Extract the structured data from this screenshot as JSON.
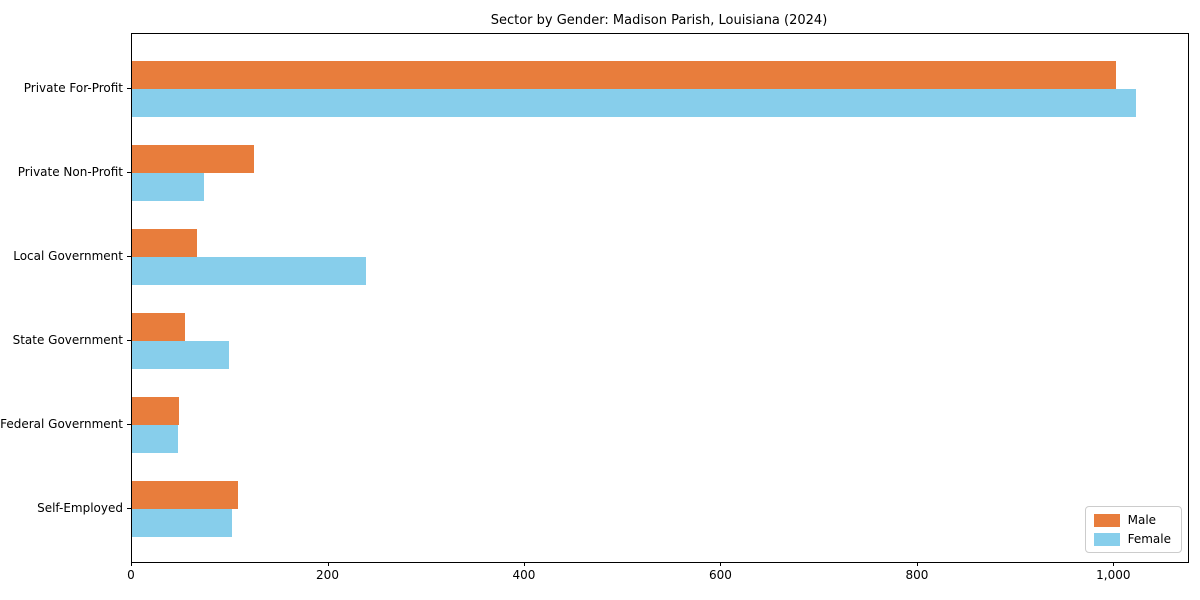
{
  "chart_data": {
    "type": "bar",
    "orientation": "horizontal",
    "title": "Sector by Gender: Madison Parish, Louisiana (2024)",
    "categories": [
      "Private For-Profit",
      "Private Non-Profit",
      "Local Government",
      "State Government",
      "Federal Government",
      "Self-Employed"
    ],
    "series": [
      {
        "name": "Male",
        "color": "#e87d3c",
        "values": [
          1002,
          124,
          66,
          54,
          48,
          108
        ]
      },
      {
        "name": "Female",
        "color": "#87ceeb",
        "values": [
          1022,
          73,
          238,
          99,
          47,
          102
        ]
      }
    ],
    "xlabel": "",
    "ylabel": "",
    "xlim": [
      0,
      1075
    ],
    "xticks": {
      "values": [
        0,
        200,
        400,
        600,
        800,
        1000
      ],
      "labels": [
        "0",
        "200",
        "400",
        "600",
        "800",
        "1,000"
      ]
    },
    "legend": {
      "position": "lower right",
      "entries": [
        "Male",
        "Female"
      ]
    },
    "grid": false
  },
  "colors": {
    "male": "#e87d3c",
    "female": "#87ceeb",
    "spine": "#000000",
    "background": "#ffffff",
    "legend_border": "#cccccc"
  }
}
